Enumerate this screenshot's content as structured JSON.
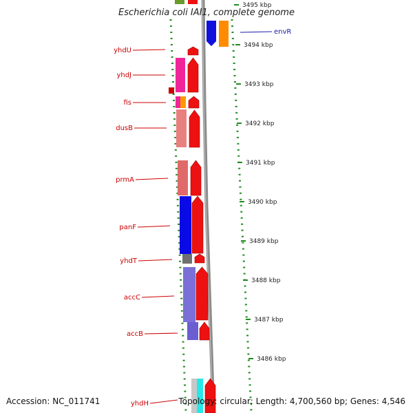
{
  "title": "Escherichia coli IAI1, complete genome",
  "footer": {
    "accession": "Accession: NC_011741",
    "topology": "Topology: circular; Length: 4,700,560 bp; Genes: 4,546"
  },
  "colors": {
    "gene_label": "#cc0000",
    "envR_label": "#1a1aa8",
    "backbone": "#8c8c8c",
    "dots": "#1e8a1e",
    "forward_arrow": "#ee1111",
    "reverse_arrow": "#1111dd"
  },
  "kbp_ticks": [
    {
      "label": "3495 kbp",
      "kbp": 3495
    },
    {
      "label": "3494 kbp",
      "kbp": 3494
    },
    {
      "label": "3493 kbp",
      "kbp": 3493
    },
    {
      "label": "3492 kbp",
      "kbp": 3492
    },
    {
      "label": "3491 kbp",
      "kbp": 3491
    },
    {
      "label": "3490 kbp",
      "kbp": 3490
    },
    {
      "label": "3489 kbp",
      "kbp": 3489
    },
    {
      "label": "3488 kbp",
      "kbp": 3488
    },
    {
      "label": "3487 kbp",
      "kbp": 3487
    },
    {
      "label": "3486 kbp",
      "kbp": 3486
    }
  ],
  "genes": [
    {
      "name": "yhdU"
    },
    {
      "name": "yhdJ"
    },
    {
      "name": "fis"
    },
    {
      "name": "dusB"
    },
    {
      "name": "prmA"
    },
    {
      "name": "panF"
    },
    {
      "name": "yhdT"
    },
    {
      "name": "accC"
    },
    {
      "name": "accB"
    },
    {
      "name": "yhdH"
    },
    {
      "name": "envR"
    }
  ]
}
